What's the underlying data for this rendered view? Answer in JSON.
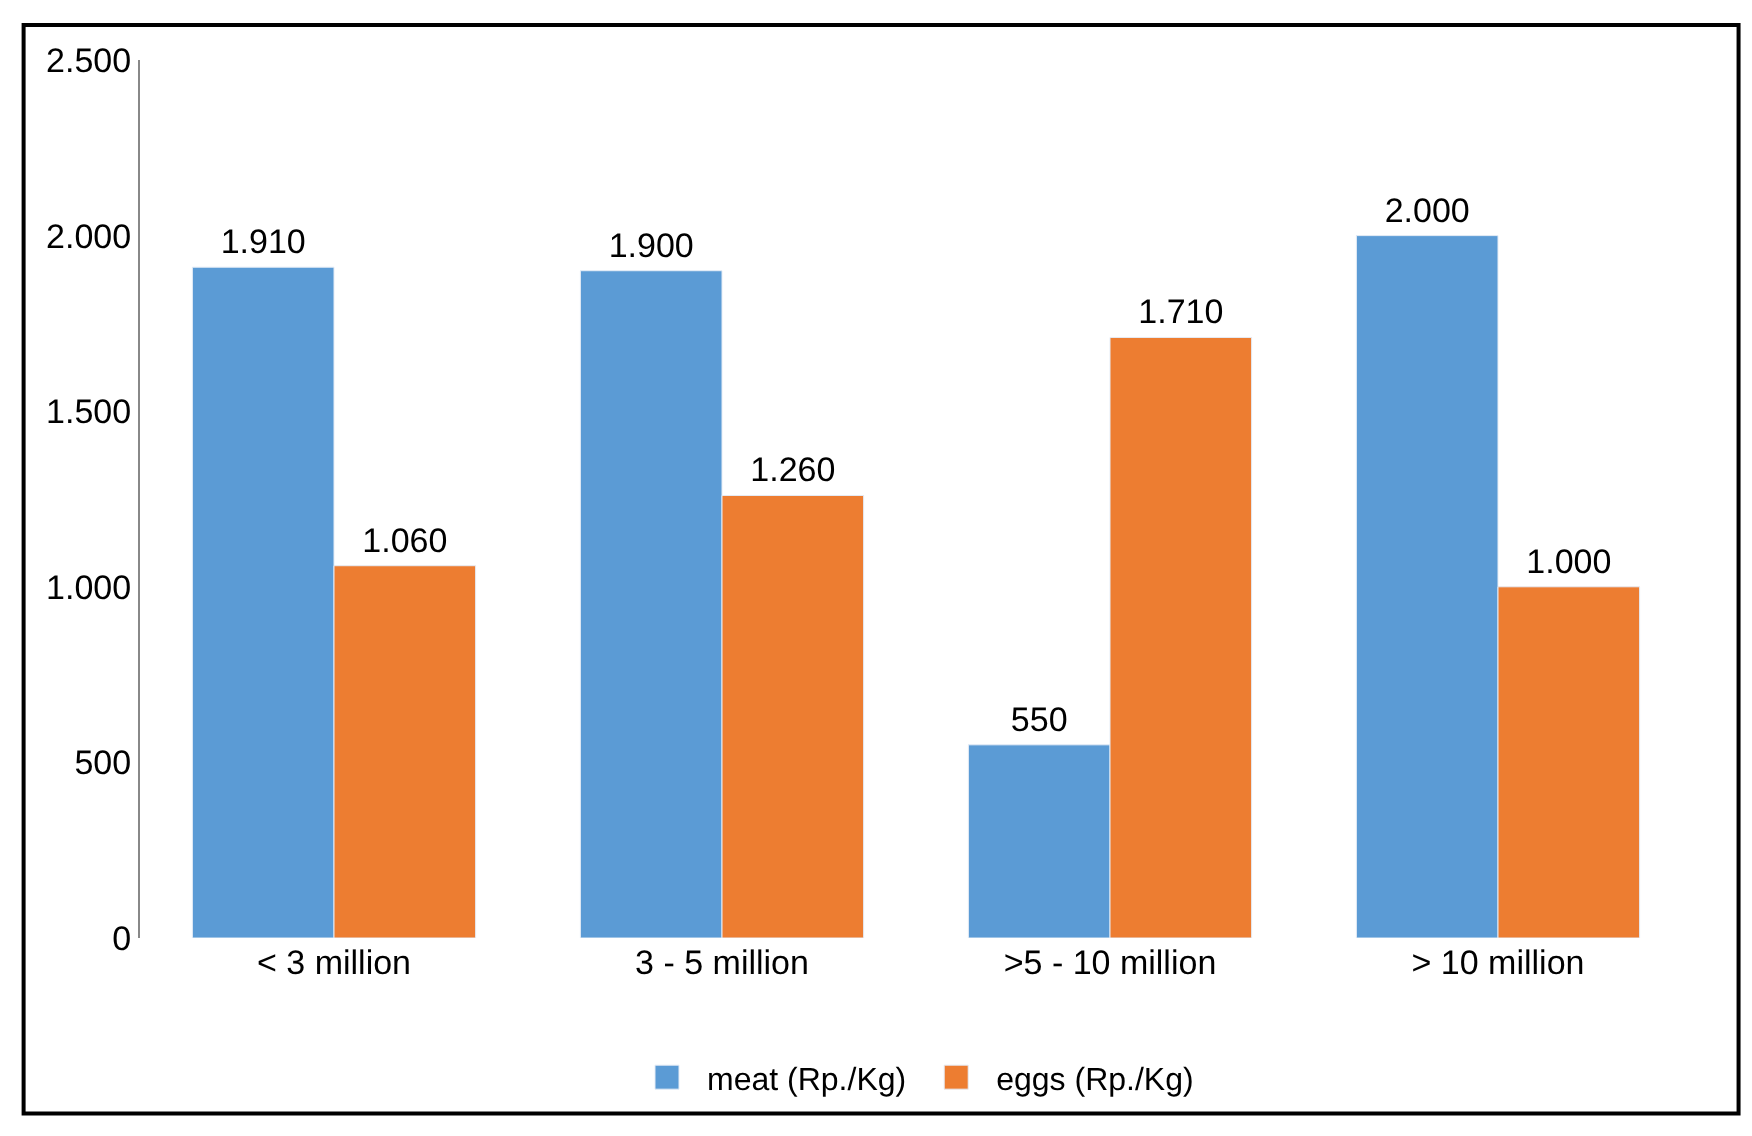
{
  "chart_data": {
    "type": "bar",
    "categories": [
      "< 3 million",
      "3 - 5 million",
      ">5 - 10 million",
      "> 10 million"
    ],
    "series": [
      {
        "name": "meat (Rp./Kg)",
        "color": "#5b9bd5",
        "values": [
          1910,
          1900,
          550,
          2000
        ],
        "value_labels": [
          "1.910",
          "1.900",
          "550",
          "2.000"
        ]
      },
      {
        "name": "eggs (Rp./Kg)",
        "color": "#ed7d31",
        "values": [
          1060,
          1260,
          1710,
          1000
        ],
        "value_labels": [
          "1.060",
          "1.260",
          "1.710",
          "1.000"
        ]
      }
    ],
    "ylim": [
      0,
      2500
    ],
    "yticks": [
      {
        "value": 0,
        "label": "0"
      },
      {
        "value": 500,
        "label": "500"
      },
      {
        "value": 1000,
        "label": "1.000"
      },
      {
        "value": 1500,
        "label": "1.500"
      },
      {
        "value": 2000,
        "label": "2.000"
      },
      {
        "value": 2500,
        "label": "2.500"
      }
    ],
    "legend": "bottom"
  }
}
